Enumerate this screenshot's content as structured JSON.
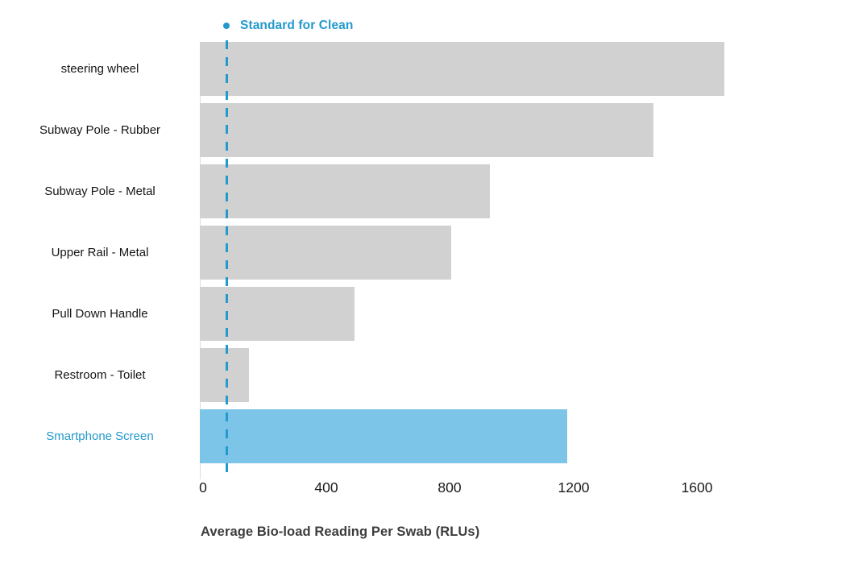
{
  "legend": {
    "label": "Standard for Clean"
  },
  "chart_data": {
    "type": "bar",
    "orientation": "horizontal",
    "title": "",
    "xlabel": "Average Bio-load Reading Per Swab (RLUs)",
    "ylabel": "",
    "categories": [
      "steering wheel",
      "Subway Pole - Rubber",
      "Subway Pole - Metal",
      "Upper Rail - Metal",
      "Pull Down Handle",
      "Restroom - Toilet",
      "Smartphone Screen"
    ],
    "values": [
      1700,
      1470,
      940,
      815,
      500,
      160,
      1190
    ],
    "highlighted_category": "Smartphone Screen",
    "reference_line": {
      "label": "Standard for Clean",
      "value": 85,
      "style": "dashed-vertical"
    },
    "x_ticks": [
      "0",
      "400",
      "800",
      "1200",
      "1600"
    ],
    "x_tick_values": [
      0,
      400,
      800,
      1200,
      1600
    ],
    "xlim": [
      0,
      1710
    ],
    "grid": false,
    "legend_position": "top-left",
    "colors": {
      "bar": "#d1d1d1",
      "highlight_bar": "#7dc5e8",
      "accent": "#2399cc",
      "axis_line": "#dedede",
      "label_text": "#151515",
      "axis_title_text": "#3c3c3c"
    }
  }
}
